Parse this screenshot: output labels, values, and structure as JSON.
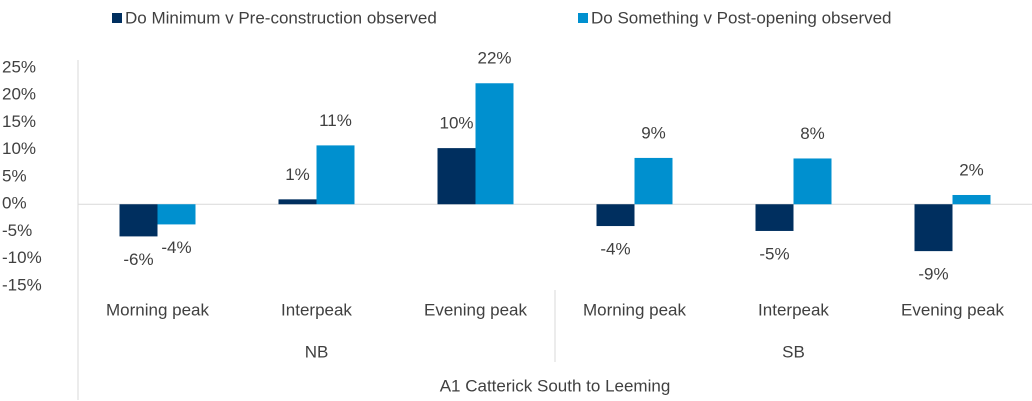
{
  "chart_data": {
    "type": "bar",
    "categories": [
      "Morning peak",
      "Interpeak",
      "Evening peak",
      "Morning peak",
      "Interpeak",
      "Evening peak"
    ],
    "groups": [
      "NB",
      "SB"
    ],
    "supercategory": "A1 Catterick South to Leeming",
    "series": [
      {
        "name": "Do Minimum v Pre-construction observed",
        "color": "#002f5f",
        "values": [
          -5.9,
          0.9,
          10.3,
          -4.0,
          -4.9,
          -8.6
        ],
        "value_labels": [
          "-6%",
          "1%",
          "10%",
          "-4%",
          "-5%",
          "-9%"
        ]
      },
      {
        "name": "Do Something v Post-opening observed",
        "color": "#0090cf",
        "values": [
          -3.7,
          10.8,
          22.2,
          8.5,
          8.4,
          1.7
        ],
        "value_labels": [
          "-4%",
          "11%",
          "22%",
          "9%",
          "8%",
          "2%"
        ]
      }
    ],
    "ylim": [
      -15,
      25
    ],
    "yticks": [
      {
        "value": -15,
        "label": "-15%"
      },
      {
        "value": -10,
        "label": "-10%"
      },
      {
        "value": -5,
        "label": "-5%"
      },
      {
        "value": 0,
        "label": "0%"
      },
      {
        "value": 5,
        "label": "5%"
      },
      {
        "value": 10,
        "label": "10%"
      },
      {
        "value": 15,
        "label": "15%"
      },
      {
        "value": 20,
        "label": "20%"
      },
      {
        "value": 25,
        "label": "25%"
      }
    ],
    "legend": "top"
  }
}
